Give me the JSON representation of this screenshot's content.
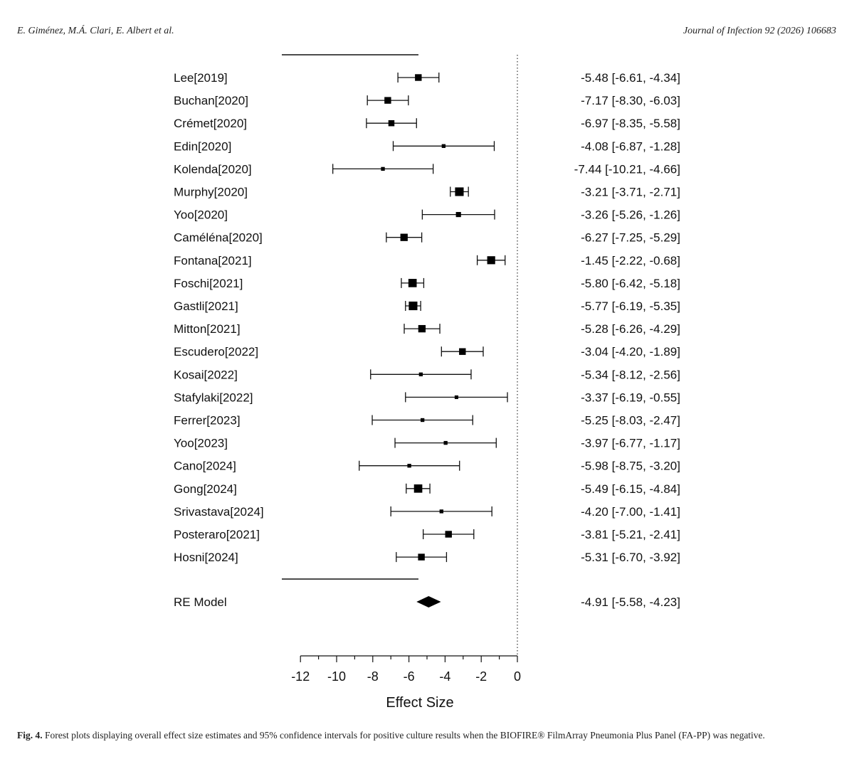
{
  "header": {
    "authors": "E. Giménez, M.Á. Clari, E. Albert et al.",
    "journal": "Journal of Infection 92 (2026) 106683"
  },
  "caption": {
    "label": "Fig. 4.",
    "text": "Forest plots displaying overall effect size estimates and 95% confidence intervals for positive culture results when the BIOFIRE® FilmArray Pneumonia Plus Panel (FA-PP) was negative."
  },
  "chart_data": {
    "type": "forest",
    "xlabel": "Effect Size",
    "xlim": [
      -12,
      0
    ],
    "xticks": [
      -12,
      -10,
      -8,
      -6,
      -4,
      -2,
      0
    ],
    "reference_line": 0,
    "studies": [
      {
        "name": "Lee[2019]",
        "est": -5.48,
        "lo": -6.61,
        "hi": -4.34,
        "label": "-5.48 [-6.61, -4.34]",
        "weight": 0.6
      },
      {
        "name": "Buchan[2020]",
        "est": -7.17,
        "lo": -8.3,
        "hi": -6.03,
        "label": "-7.17 [-8.30, -6.03]",
        "weight": 0.6
      },
      {
        "name": "Crémet[2020]",
        "est": -6.97,
        "lo": -8.35,
        "hi": -5.58,
        "label": "-6.97 [-8.35, -5.58]",
        "weight": 0.5
      },
      {
        "name": "Edin[2020]",
        "est": -4.08,
        "lo": -6.87,
        "hi": -1.28,
        "label": "-4.08 [-6.87, -1.28]",
        "weight": 0.15
      },
      {
        "name": "Kolenda[2020]",
        "est": -7.44,
        "lo": -10.21,
        "hi": -4.66,
        "label": "-7.44 [-10.21, -4.66]",
        "weight": 0.15
      },
      {
        "name": "Murphy[2020]",
        "est": -3.21,
        "lo": -3.71,
        "hi": -2.71,
        "label": "-3.21 [-3.71, -2.71]",
        "weight": 0.9
      },
      {
        "name": "Yoo[2020]",
        "est": -3.26,
        "lo": -5.26,
        "hi": -1.26,
        "label": "-3.26 [-5.26, -1.26]",
        "weight": 0.35
      },
      {
        "name": "Caméléna[2020]",
        "est": -6.27,
        "lo": -7.25,
        "hi": -5.29,
        "label": "-6.27 [-7.25, -5.29]",
        "weight": 0.7
      },
      {
        "name": "Fontana[2021]",
        "est": -1.45,
        "lo": -2.22,
        "hi": -0.68,
        "label": "-1.45 [-2.22, -0.68]",
        "weight": 0.8
      },
      {
        "name": "Foschi[2021]",
        "est": -5.8,
        "lo": -6.42,
        "hi": -5.18,
        "label": "-5.80 [-6.42, -5.18]",
        "weight": 0.85
      },
      {
        "name": "Gastli[2021]",
        "est": -5.77,
        "lo": -6.19,
        "hi": -5.35,
        "label": "-5.77 [-6.19, -5.35]",
        "weight": 0.9
      },
      {
        "name": "Mitton[2021]",
        "est": -5.28,
        "lo": -6.26,
        "hi": -4.29,
        "label": "-5.28 [-6.26, -4.29]",
        "weight": 0.7
      },
      {
        "name": "Escudero[2022]",
        "est": -3.04,
        "lo": -4.2,
        "hi": -1.89,
        "label": "-3.04 [-4.20, -1.89]",
        "weight": 0.6
      },
      {
        "name": "Kosai[2022]",
        "est": -5.34,
        "lo": -8.12,
        "hi": -2.56,
        "label": "-5.34 [-8.12, -2.56]",
        "weight": 0.15
      },
      {
        "name": "Stafylaki[2022]",
        "est": -3.37,
        "lo": -6.19,
        "hi": -0.55,
        "label": "-3.37 [-6.19, -0.55]",
        "weight": 0.12
      },
      {
        "name": "Ferrer[2023]",
        "est": -5.25,
        "lo": -8.03,
        "hi": -2.47,
        "label": "-5.25 [-8.03, -2.47]",
        "weight": 0.15
      },
      {
        "name": "Yoo[2023]",
        "est": -3.97,
        "lo": -6.77,
        "hi": -1.17,
        "label": "-3.97 [-6.77, -1.17]",
        "weight": 0.15
      },
      {
        "name": "Cano[2024]",
        "est": -5.98,
        "lo": -8.75,
        "hi": -3.2,
        "label": "-5.98 [-8.75, -3.20]",
        "weight": 0.15
      },
      {
        "name": "Gong[2024]",
        "est": -5.49,
        "lo": -6.15,
        "hi": -4.84,
        "label": "-5.49 [-6.15, -4.84]",
        "weight": 0.85
      },
      {
        "name": "Srivastava[2024]",
        "est": -4.2,
        "lo": -7.0,
        "hi": -1.41,
        "label": "-4.20 [-7.00, -1.41]",
        "weight": 0.15
      },
      {
        "name": "Posteraro[2021]",
        "est": -3.81,
        "lo": -5.21,
        "hi": -2.41,
        "label": "-3.81 [-5.21, -2.41]",
        "weight": 0.6
      },
      {
        "name": "Hosni[2024]",
        "est": -5.31,
        "lo": -6.7,
        "hi": -3.92,
        "label": "-5.31 [-6.70, -3.92]",
        "weight": 0.6
      }
    ],
    "summary": {
      "name": "RE Model",
      "est": -4.91,
      "lo": -5.58,
      "hi": -4.23,
      "label": "-4.91 [-5.58, -4.23]"
    }
  }
}
